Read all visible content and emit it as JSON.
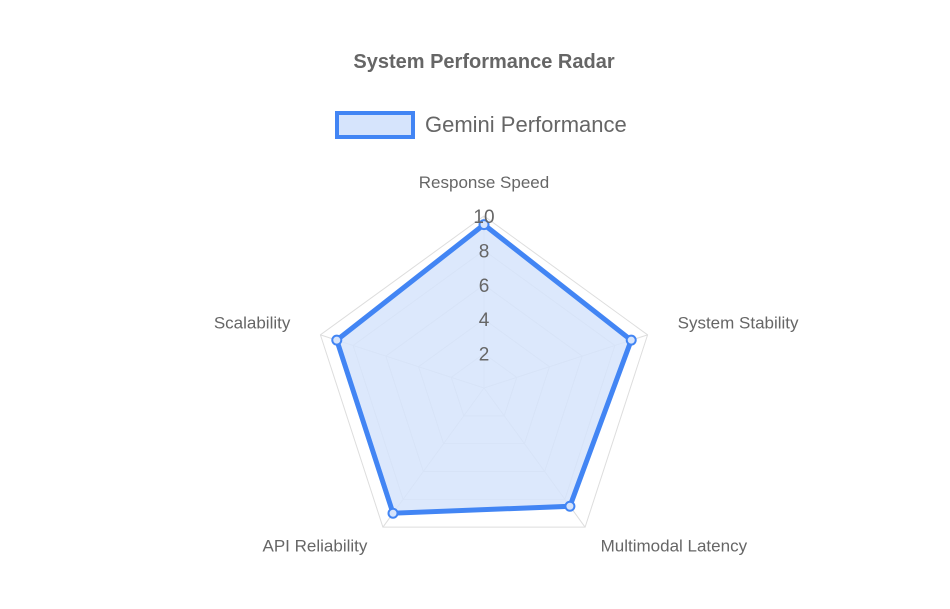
{
  "chart_data": {
    "type": "radar",
    "title": "System Performance Radar",
    "categories": [
      "Response Speed",
      "System Stability",
      "Multimodal Latency",
      "API Reliability",
      "Scalability"
    ],
    "series": [
      {
        "name": "Gemini Performance",
        "values": [
          9.5,
          9.0,
          8.5,
          9.0,
          9.0
        ]
      }
    ],
    "rlim": [
      0,
      10
    ],
    "ticks": [
      "2",
      "4",
      "6",
      "8",
      "10"
    ],
    "grid": true,
    "legend_position": "top",
    "colors": {
      "line": "#4285F4",
      "fill": "#D6E4FC",
      "grid": "#DDDDDD",
      "text": "#666666"
    }
  }
}
